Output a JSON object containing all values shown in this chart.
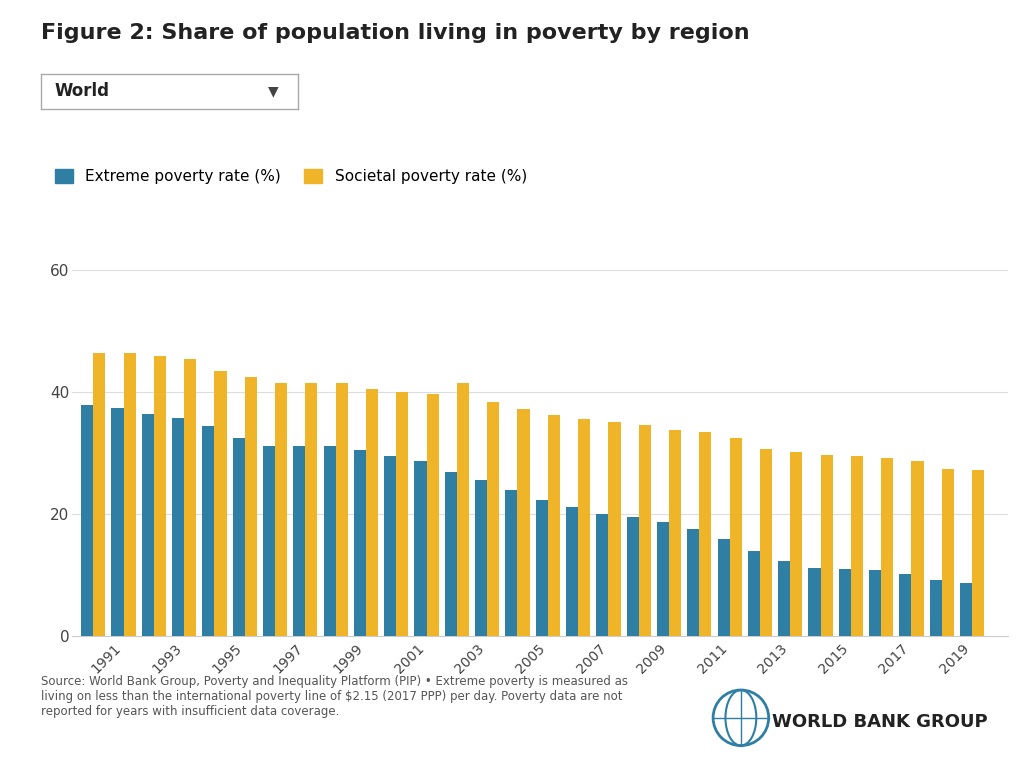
{
  "title": "Figure 2: Share of population living in poverty by region",
  "dropdown_label": "World",
  "legend_extreme": "Extreme poverty rate (%)",
  "legend_societal": "Societal poverty rate (%)",
  "years": [
    1990,
    1991,
    1992,
    1993,
    1994,
    1995,
    1996,
    1997,
    1998,
    1999,
    2000,
    2001,
    2002,
    2003,
    2004,
    2005,
    2006,
    2007,
    2008,
    2009,
    2010,
    2011,
    2012,
    2013,
    2014,
    2015,
    2016,
    2017,
    2018,
    2019
  ],
  "extreme_poverty": [
    38.0,
    37.5,
    36.5,
    35.8,
    34.5,
    32.5,
    31.2,
    31.2,
    31.2,
    30.5,
    29.5,
    28.7,
    27.0,
    25.6,
    24.0,
    22.3,
    21.2,
    20.1,
    19.5,
    18.7,
    17.6,
    16.0,
    14.0,
    12.4,
    11.2,
    11.0,
    10.8,
    10.2,
    9.2,
    8.8
  ],
  "societal_poverty": [
    46.5,
    46.5,
    46.0,
    45.5,
    43.5,
    42.5,
    41.5,
    41.5,
    41.5,
    40.5,
    40.0,
    39.7,
    41.5,
    38.5,
    37.3,
    36.3,
    35.7,
    35.2,
    34.7,
    33.8,
    33.5,
    32.5,
    30.7,
    30.2,
    29.7,
    29.5,
    29.2,
    28.7,
    27.5,
    27.2
  ],
  "extreme_color": "#2e7fa3",
  "societal_color": "#f0b429",
  "background_color": "#ffffff",
  "grid_color": "#dddddd",
  "ylim": [
    0,
    70
  ],
  "yticks": [
    0,
    20,
    40,
    60
  ],
  "xlabel": "",
  "ylabel": "",
  "source_text": "Source: World Bank Group, Poverty and Inequality Platform (PIP) • Extreme poverty is measured as\nliving on less than the international poverty line of $2.15 (2017 PPP) per day. Poverty data are not\nreported for years with insufficient data coverage.",
  "xtick_years": [
    1991,
    1993,
    1995,
    1997,
    1999,
    2001,
    2003,
    2005,
    2007,
    2009,
    2011,
    2013,
    2015,
    2017,
    2019
  ]
}
